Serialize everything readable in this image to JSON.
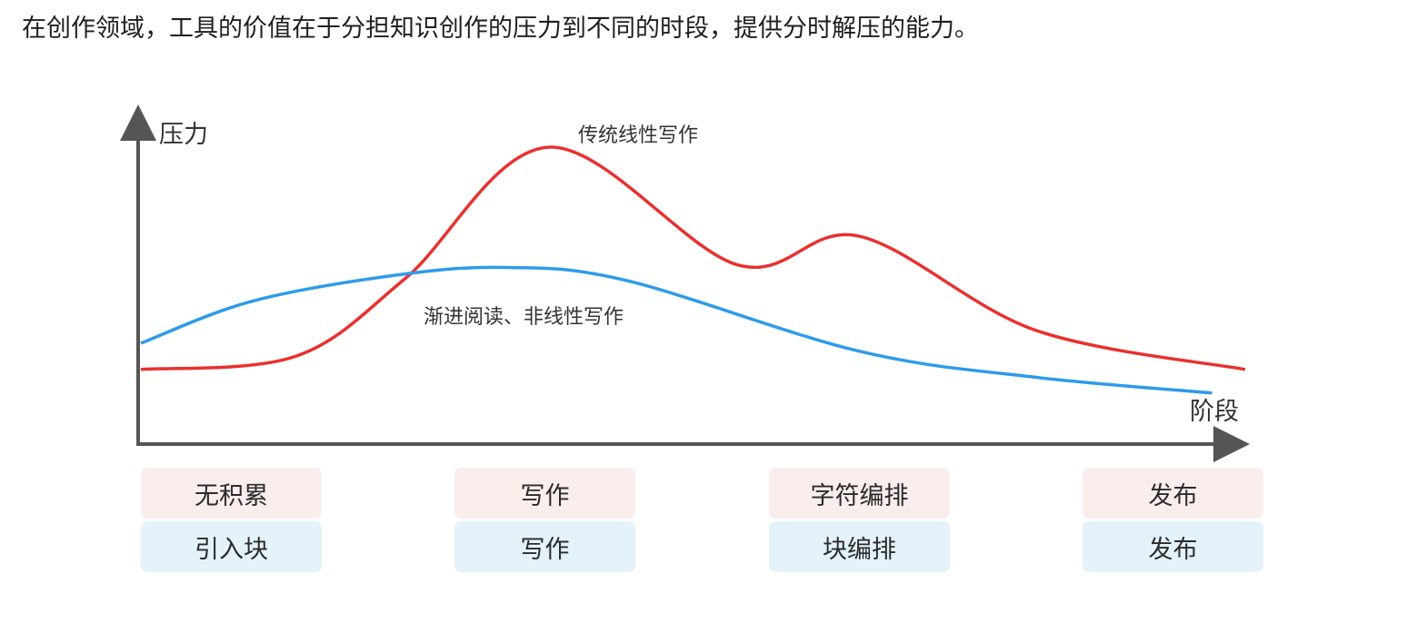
{
  "intro_text": "在创作领域，工具的价值在于分担知识创作的压力到不同的时段，提供分时解压的能力。",
  "chart_data": {
    "type": "line",
    "ylabel": "压力",
    "xlabel": "阶段",
    "grid": false,
    "x_domain": [
      0,
      100
    ],
    "y_domain": [
      0,
      100
    ],
    "series": [
      {
        "name": "传统线性写作",
        "color": "#e8312f",
        "points": [
          [
            0,
            15
          ],
          [
            14,
            20
          ],
          [
            24,
            50
          ],
          [
            37,
            100
          ],
          [
            54,
            55
          ],
          [
            65,
            66
          ],
          [
            81,
            30
          ],
          [
            100,
            15
          ]
        ]
      },
      {
        "name": "渐进阅读、非线性写作",
        "color": "#2f9be8",
        "points": [
          [
            0,
            25
          ],
          [
            10,
            41
          ],
          [
            23,
            51
          ],
          [
            33,
            54
          ],
          [
            44,
            49
          ],
          [
            65,
            22
          ],
          [
            81,
            12
          ],
          [
            97,
            6
          ]
        ]
      }
    ],
    "stages": [
      {
        "top": "无积累",
        "bottom": "引入块"
      },
      {
        "top": "写作",
        "bottom": "写作"
      },
      {
        "top": "字符编排",
        "bottom": "块编排"
      },
      {
        "top": "发布",
        "bottom": "发布"
      }
    ]
  },
  "colors": {
    "axis": "#555555",
    "stage_top_bg": "#faeeec",
    "stage_bottom_bg": "#e4f2fa"
  }
}
